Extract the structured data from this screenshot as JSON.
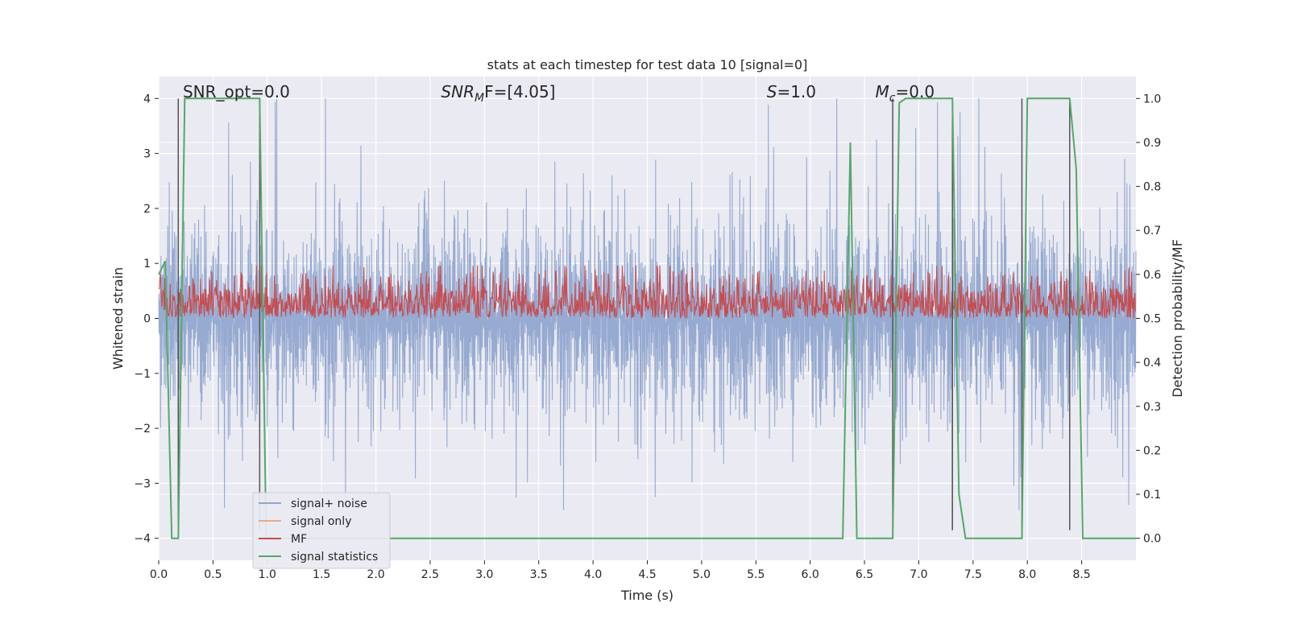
{
  "chart_data": {
    "type": "line",
    "title": "stats at each timestep for test data 10 [signal=0]",
    "xlabel": "Time (s)",
    "ylabel_left": "Whitened strain",
    "ylabel_right": "Detection probability/MF",
    "xlim": [
      0.0,
      9.0
    ],
    "ylim_left": [
      -4.4,
      4.4
    ],
    "ylim_right": [
      -0.05,
      1.05
    ],
    "x_ticks": [
      0.0,
      0.5,
      1.0,
      1.5,
      2.0,
      2.5,
      3.0,
      3.5,
      4.0,
      4.5,
      5.0,
      5.5,
      6.0,
      6.5,
      7.0,
      7.5,
      8.0,
      8.5
    ],
    "y_ticks_left": [
      -4,
      -3,
      -2,
      -1,
      0,
      1,
      2,
      3,
      4
    ],
    "y_ticks_right": [
      0.0,
      0.1,
      0.2,
      0.3,
      0.4,
      0.5,
      0.6,
      0.7,
      0.8,
      0.9,
      1.0
    ],
    "grid": true,
    "legend_placement": "lower-left",
    "annotations": [
      {
        "text": "SNR_opt=0.0",
        "x": 0.2
      },
      {
        "text": "SNR",
        "sub": "M",
        "rest": "F=[4.05]",
        "italic": true,
        "x": 2.6
      },
      {
        "text": "S",
        "rest": "=1.0",
        "italic": true,
        "x": 5.6
      },
      {
        "text": "M",
        "sub": "c",
        "rest": "=0.0",
        "italic": true,
        "x": 6.6
      }
    ],
    "series": [
      {
        "name": "signal+ noise",
        "color": "#92a6cf",
        "axis": "left",
        "kind": "noise",
        "amplitude_typical": 1.5,
        "amplitude_max": 4.0
      },
      {
        "name": "signal only",
        "color": "#e7a987",
        "axis": "left",
        "kind": "flat",
        "values_note": 0
      },
      {
        "name": "MF",
        "color": "#c44e52",
        "axis": "right",
        "kind": "noise-positive",
        "baseline": 0.5,
        "amplitude_typical": 0.06,
        "amplitude_max": 0.12
      },
      {
        "name": "signal statistics",
        "color": "#55a868",
        "axis": "right",
        "x": [
          0.0,
          0.06,
          0.12,
          0.18,
          0.24,
          0.3,
          0.93,
          0.99,
          1.05,
          6.3,
          6.37,
          6.43,
          6.76,
          6.82,
          6.88,
          7.31,
          7.37,
          7.43,
          7.95,
          8.0,
          8.39,
          8.45,
          8.51,
          9.0
        ],
        "y": [
          0.6,
          0.63,
          0.0,
          0.0,
          1.0,
          1.0,
          1.0,
          0.0,
          0.0,
          0.0,
          0.9,
          0.0,
          0.0,
          0.99,
          1.0,
          1.0,
          0.1,
          0.0,
          0.0,
          1.0,
          1.0,
          0.84,
          0.0,
          0.0
        ]
      }
    ],
    "vertical_markers": {
      "color": "#555555",
      "x": [
        0.18,
        0.93,
        6.76,
        7.31,
        7.95,
        8.39
      ],
      "y_range_left": [
        -3.85,
        4.0
      ]
    }
  },
  "legend": {
    "items": [
      {
        "label": "signal+ noise",
        "color": "#92a6cf"
      },
      {
        "label": "signal only",
        "color": "#e7a987"
      },
      {
        "label": "MF",
        "color": "#c44e52"
      },
      {
        "label": "signal statistics",
        "color": "#55a868"
      }
    ]
  },
  "colors": {
    "plot_background": "#eaeaf2",
    "grid": "#ffffff"
  }
}
